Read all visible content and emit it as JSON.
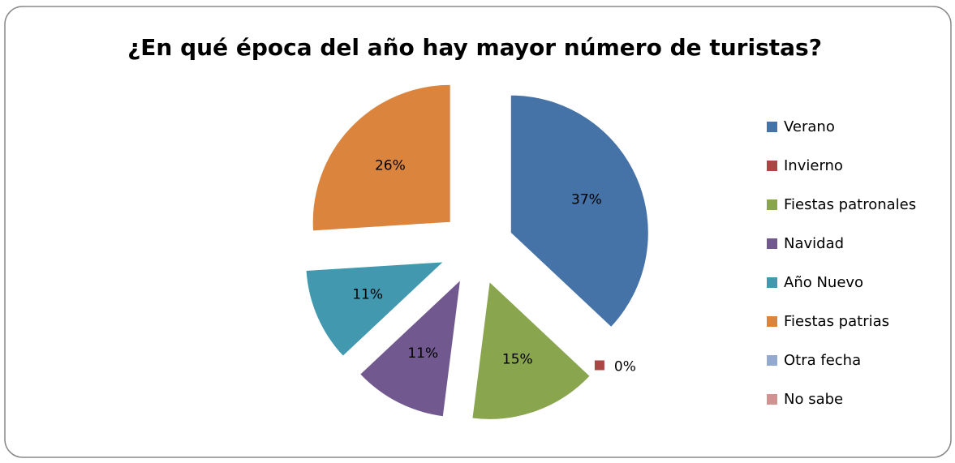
{
  "chart_data": {
    "type": "pie",
    "title": "¿En qué época del año hay mayor número de turistas?",
    "categories": [
      "Verano",
      "Invierno",
      "Fiestas patronales",
      "Navidad",
      "Año Nuevo",
      "Fiestas patrias",
      "Otra fecha",
      "No sabe"
    ],
    "values": [
      37,
      0,
      15,
      11,
      11,
      26,
      0,
      0
    ],
    "value_labels": [
      "37%",
      "0%",
      "15%",
      "11%",
      "11%",
      "26%",
      null,
      null
    ],
    "colors": [
      "#4572a7",
      "#aa4643",
      "#89a54e",
      "#71588f",
      "#4198af",
      "#db843d",
      "#93a9cf",
      "#d19392"
    ],
    "legend": "right"
  }
}
